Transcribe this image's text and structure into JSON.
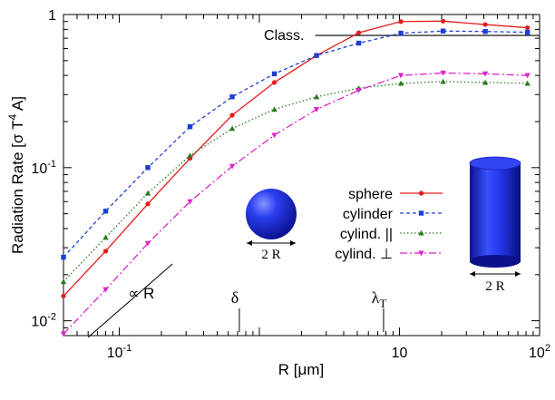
{
  "chart_data": {
    "type": "line",
    "scale": {
      "x": "log",
      "y": "log"
    },
    "xlim": [
      0.04,
      100
    ],
    "ylim": [
      0.008,
      1
    ],
    "xlabel": "R [μm]",
    "ylabel_parts": {
      "main": "Radiation Rate [σ T",
      "sup": "4",
      "tail": " A]"
    },
    "x_ticks": [
      {
        "value": 0.1,
        "base": "10",
        "exp": "-1"
      },
      {
        "value": 10,
        "base": "10",
        "exp": ""
      },
      {
        "value": 100,
        "base": "10",
        "exp": "2"
      }
    ],
    "y_ticks": [
      {
        "value": 0.01,
        "base": "10",
        "exp": "-2"
      },
      {
        "value": 0.1,
        "base": "10",
        "exp": "-1"
      },
      {
        "value": 1,
        "base": "1",
        "exp": ""
      }
    ],
    "legend_position": "middle-right",
    "series": [
      {
        "name": "sphere",
        "color": "#e41a1c",
        "dash": "",
        "marker": "circle",
        "x": [
          0.04,
          0.08,
          0.16,
          0.32,
          0.64,
          1.28,
          2.56,
          5.12,
          10.24,
          20.48,
          40.96,
          81.92
        ],
        "y": [
          0.0145,
          0.0285,
          0.058,
          0.115,
          0.22,
          0.36,
          0.54,
          0.76,
          0.9,
          0.905,
          0.86,
          0.82
        ]
      },
      {
        "name": "cylinder",
        "color": "#1c3fd6",
        "dash": "4,3",
        "marker": "square",
        "x": [
          0.04,
          0.08,
          0.16,
          0.32,
          0.64,
          1.28,
          2.56,
          5.12,
          10.24,
          20.48,
          40.96,
          81.92
        ],
        "y": [
          0.026,
          0.052,
          0.1,
          0.185,
          0.29,
          0.41,
          0.54,
          0.65,
          0.755,
          0.78,
          0.775,
          0.765
        ]
      },
      {
        "name": "cylind. ||",
        "color": "#2a7a1e",
        "dash": "1.5,2.5",
        "marker": "triangle-up",
        "x": [
          0.04,
          0.08,
          0.16,
          0.32,
          0.64,
          1.28,
          2.56,
          5.12,
          10.24,
          20.48,
          40.96,
          81.92
        ],
        "y": [
          0.018,
          0.035,
          0.068,
          0.12,
          0.18,
          0.24,
          0.29,
          0.33,
          0.355,
          0.365,
          0.36,
          0.355
        ]
      },
      {
        "name": "cylind. ⊥",
        "color": "#e020c8",
        "dash": "8,3,2,3",
        "marker": "triangle-down",
        "x": [
          0.04,
          0.08,
          0.16,
          0.32,
          0.64,
          1.28,
          2.56,
          5.12,
          10.24,
          20.48,
          40.96,
          81.92
        ],
        "y": [
          0.0082,
          0.016,
          0.032,
          0.06,
          0.102,
          0.163,
          0.24,
          0.32,
          0.4,
          0.415,
          0.41,
          0.4
        ]
      }
    ],
    "reference_line": {
      "label": "Class.",
      "y": 0.73,
      "x_start": 2.5,
      "x_end": 100
    },
    "slope_line": {
      "label": "∝ R",
      "x": [
        0.06,
        0.24
      ],
      "y": [
        0.0078,
        0.0235
      ]
    },
    "markers": [
      {
        "label": "δ",
        "sub": "",
        "x": 0.72
      },
      {
        "label": "λ",
        "sub": "T",
        "x": 7.7
      }
    ],
    "insets": [
      {
        "name": "sphere-inset",
        "scale_label": "2 R"
      },
      {
        "name": "cylinder-inset",
        "scale_label": "2 R"
      }
    ],
    "inset_color": "#1a27d8"
  }
}
